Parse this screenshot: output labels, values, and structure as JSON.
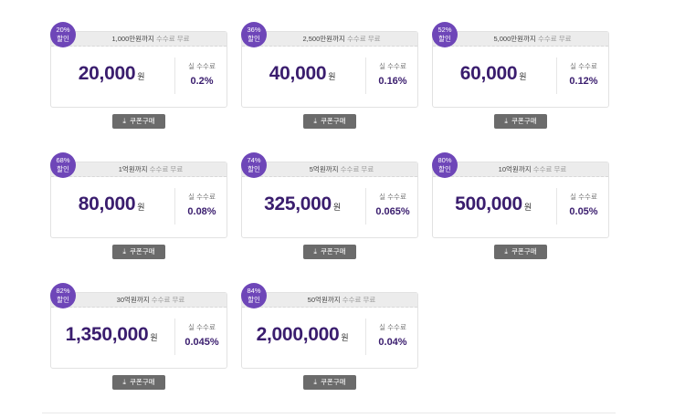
{
  "coupons": [
    {
      "badge_pct": "20%",
      "badge_word": "할인",
      "limit": "1,000만원까지",
      "limit_suffix": "수수료 무료",
      "price": "20,000",
      "won": "원",
      "rate_label": "실 수수료",
      "rate": "0.2%",
      "buy_label": "쿠폰구매"
    },
    {
      "badge_pct": "36%",
      "badge_word": "할인",
      "limit": "2,500만원까지",
      "limit_suffix": "수수료 무료",
      "price": "40,000",
      "won": "원",
      "rate_label": "실 수수료",
      "rate": "0.16%",
      "buy_label": "쿠폰구매"
    },
    {
      "badge_pct": "52%",
      "badge_word": "할인",
      "limit": "5,000만원까지",
      "limit_suffix": "수수료 무료",
      "price": "60,000",
      "won": "원",
      "rate_label": "실 수수료",
      "rate": "0.12%",
      "buy_label": "쿠폰구매"
    },
    {
      "badge_pct": "68%",
      "badge_word": "할인",
      "limit": "1억원까지",
      "limit_suffix": "수수료 무료",
      "price": "80,000",
      "won": "원",
      "rate_label": "실 수수료",
      "rate": "0.08%",
      "buy_label": "쿠폰구매"
    },
    {
      "badge_pct": "74%",
      "badge_word": "할인",
      "limit": "5억원까지",
      "limit_suffix": "수수료 무료",
      "price": "325,000",
      "won": "원",
      "rate_label": "실 수수료",
      "rate": "0.065%",
      "buy_label": "쿠폰구매"
    },
    {
      "badge_pct": "80%",
      "badge_word": "할인",
      "limit": "10억원까지",
      "limit_suffix": "수수료 무료",
      "price": "500,000",
      "won": "원",
      "rate_label": "실 수수료",
      "rate": "0.05%",
      "buy_label": "쿠폰구매"
    },
    {
      "badge_pct": "82%",
      "badge_word": "할인",
      "limit": "30억원까지",
      "limit_suffix": "수수료 무료",
      "price": "1,350,000",
      "won": "원",
      "rate_label": "실 수수료",
      "rate": "0.045%",
      "buy_label": "쿠폰구매"
    },
    {
      "badge_pct": "84%",
      "badge_word": "할인",
      "limit": "50억원까지",
      "limit_suffix": "수수료 무료",
      "price": "2,000,000",
      "won": "원",
      "rate_label": "실 수수료",
      "rate": "0.04%",
      "buy_label": "쿠폰구매"
    }
  ],
  "icons": {
    "download": "download-icon"
  },
  "colors": {
    "badge": "#6e46b8",
    "price": "#3a1d6e",
    "button": "#6b6b6b"
  }
}
